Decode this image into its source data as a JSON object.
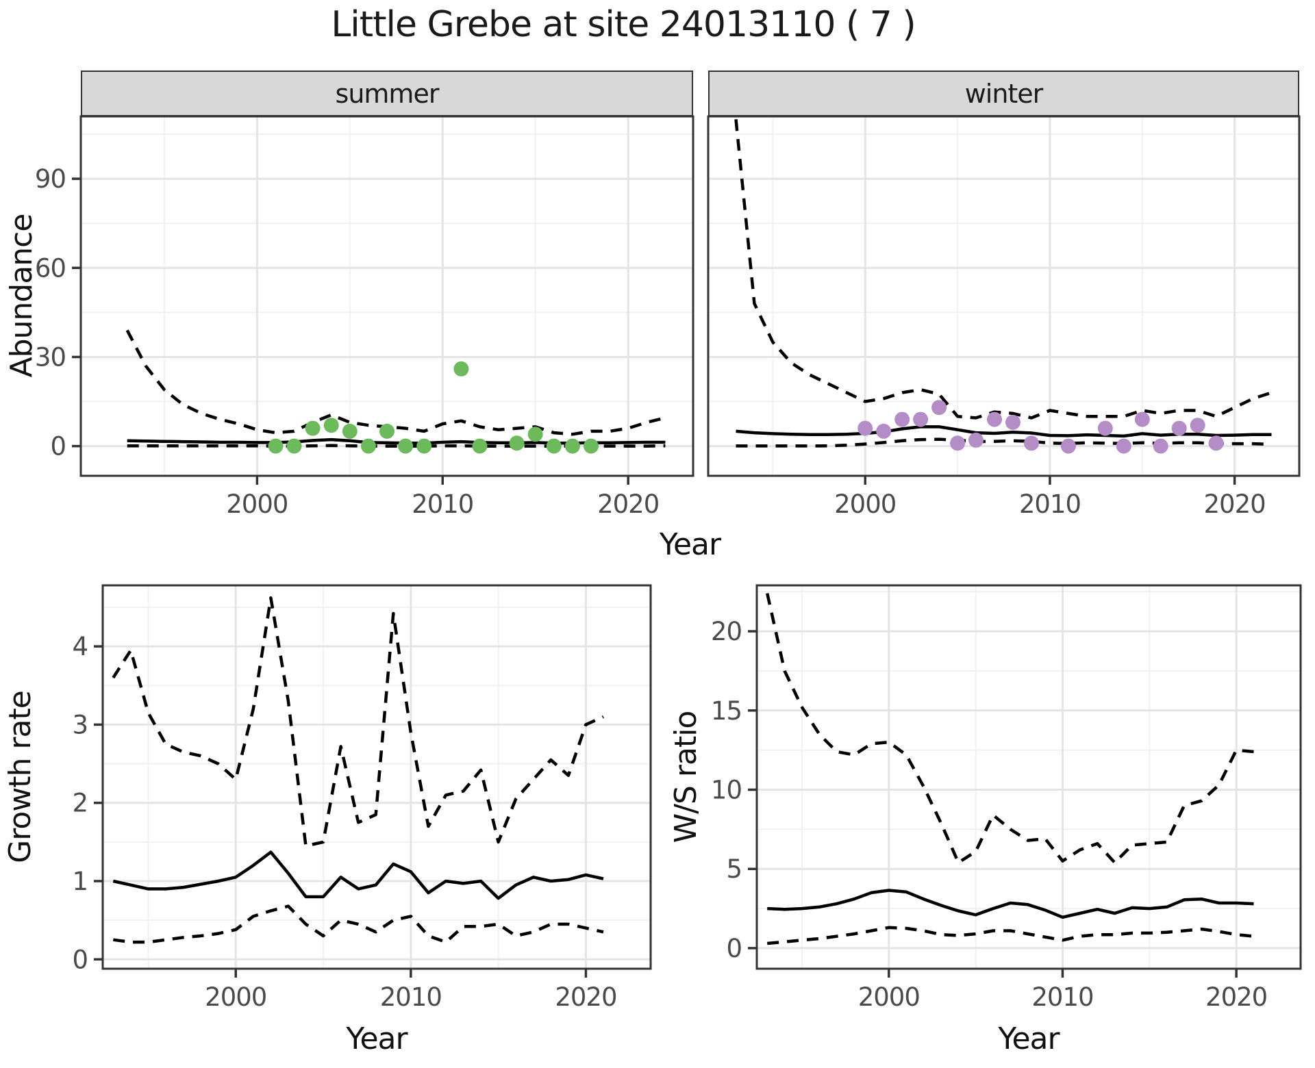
{
  "title": "Little Grebe at site 24013110 ( 7 )",
  "facets": {
    "summer": "summer",
    "winter": "winter"
  },
  "axes": {
    "abundance_label": "Abundance",
    "growth_label": "Growth rate",
    "ws_label": "W/S ratio",
    "x_label": "Year"
  },
  "colors": {
    "summer_point": "#6cba5c",
    "winter_point": "#b48cc6",
    "line": "#000000",
    "strip_bg": "#d8d8d8",
    "panel_border": "#333333",
    "grid_major": "#e4e4e4",
    "grid_minor": "#f1f1f1",
    "tick_text": "#4a4a4a",
    "title_text": "#1a1a1a"
  },
  "chart_data": [
    {
      "id": "abundance_summer",
      "type": "line",
      "facet_label": "summer",
      "xlabel": "Year",
      "ylabel": "Abundance",
      "xlim": [
        1990.5,
        2023.5
      ],
      "ylim": [
        -10,
        111
      ],
      "xticks": [
        2000,
        2010,
        2020
      ],
      "yticks": [
        0,
        30,
        60,
        90
      ],
      "x": [
        1993,
        1994,
        1995,
        1996,
        1997,
        1998,
        1999,
        2000,
        2001,
        2002,
        2003,
        2004,
        2005,
        2006,
        2007,
        2008,
        2009,
        2010,
        2011,
        2012,
        2013,
        2014,
        2015,
        2016,
        2017,
        2018,
        2019,
        2020,
        2021,
        2022
      ],
      "series": [
        {
          "name": "upper_ci",
          "linetype": "dashed",
          "values": [
            39,
            27,
            19,
            14,
            11,
            9,
            7.5,
            5.5,
            4.5,
            5,
            8,
            10.5,
            8,
            7,
            6.5,
            6,
            5,
            7.5,
            8.5,
            6.5,
            5.5,
            6,
            6.5,
            4.5,
            4,
            5,
            5,
            6,
            8,
            9.5
          ]
        },
        {
          "name": "lower_ci",
          "linetype": "dashed",
          "values": [
            0.1,
            0.1,
            0.1,
            0.1,
            0.1,
            0.1,
            0.1,
            0.1,
            0,
            0,
            0.1,
            0.2,
            0.1,
            0,
            0,
            0,
            0,
            0.1,
            0.1,
            0,
            0,
            0,
            0,
            0,
            0,
            0,
            0,
            0,
            0,
            0.1
          ]
        },
        {
          "name": "mean",
          "linetype": "solid",
          "values": [
            1.8,
            1.7,
            1.6,
            1.5,
            1.4,
            1.3,
            1.3,
            1.2,
            1.2,
            1.4,
            1.9,
            2.2,
            1.8,
            1.2,
            1.1,
            1.0,
            1.0,
            1.3,
            1.5,
            1.2,
            1.1,
            1.1,
            1.2,
            1.0,
            1.0,
            1.1,
            1.1,
            1.2,
            1.3,
            1.3
          ]
        }
      ],
      "points": {
        "name": "observed-count",
        "color": "#6cba5c",
        "data": [
          [
            2001,
            0
          ],
          [
            2002,
            0
          ],
          [
            2003,
            6
          ],
          [
            2004,
            7
          ],
          [
            2005,
            5
          ],
          [
            2006,
            0
          ],
          [
            2007,
            5
          ],
          [
            2008,
            0
          ],
          [
            2009,
            0
          ],
          [
            2011,
            26
          ],
          [
            2012,
            0
          ],
          [
            2014,
            1
          ],
          [
            2015,
            4
          ],
          [
            2016,
            0
          ],
          [
            2017,
            0
          ],
          [
            2018,
            0
          ]
        ]
      }
    },
    {
      "id": "abundance_winter",
      "type": "line",
      "facet_label": "winter",
      "xlabel": "Year",
      "ylabel": "Abundance",
      "xlim": [
        1991.5,
        2023.5
      ],
      "ylim": [
        -10,
        111
      ],
      "xticks": [
        2000,
        2010,
        2020
      ],
      "yticks": [
        0,
        30,
        60,
        90
      ],
      "x": [
        1993,
        1994,
        1995,
        1996,
        1997,
        1998,
        1999,
        2000,
        2001,
        2002,
        2003,
        2004,
        2005,
        2006,
        2007,
        2008,
        2009,
        2010,
        2011,
        2012,
        2013,
        2014,
        2015,
        2016,
        2017,
        2018,
        2019,
        2020,
        2021,
        2022
      ],
      "series": [
        {
          "name": "upper_ci",
          "linetype": "dashed",
          "values": [
            110,
            48,
            35,
            28,
            24,
            21,
            18,
            15,
            16,
            18,
            19,
            17.5,
            10,
            9.5,
            11.5,
            11,
            9.5,
            12,
            11,
            10,
            10,
            10,
            12,
            11,
            12,
            12,
            10,
            13,
            16,
            18
          ]
        },
        {
          "name": "lower_ci",
          "linetype": "dashed",
          "values": [
            0.05,
            0.05,
            0.05,
            0.05,
            0.05,
            0.1,
            0.3,
            0.7,
            1.2,
            1.8,
            2.2,
            2.3,
            2.0,
            1.5,
            1.6,
            1.8,
            1.6,
            1.0,
            0.9,
            1.1,
            1.0,
            0.9,
            1.1,
            0.9,
            1.1,
            1.1,
            0.9,
            0.8,
            0.8,
            0.6
          ]
        },
        {
          "name": "mean",
          "linetype": "solid",
          "values": [
            5.0,
            4.5,
            4.2,
            4.0,
            3.9,
            3.9,
            4.0,
            4.3,
            4.8,
            5.8,
            6.5,
            6.5,
            5.5,
            4.5,
            4.3,
            4.7,
            4.4,
            3.6,
            3.5,
            3.8,
            3.6,
            3.4,
            4.2,
            3.7,
            4.0,
            4.0,
            3.6,
            3.7,
            3.9,
            3.9
          ]
        }
      ],
      "points": {
        "name": "observed-count",
        "color": "#b48cc6",
        "data": [
          [
            2000,
            6
          ],
          [
            2001,
            5
          ],
          [
            2002,
            9
          ],
          [
            2003,
            9
          ],
          [
            2004,
            13
          ],
          [
            2005,
            1
          ],
          [
            2006,
            2
          ],
          [
            2007,
            9
          ],
          [
            2008,
            8
          ],
          [
            2009,
            1
          ],
          [
            2011,
            0
          ],
          [
            2013,
            6
          ],
          [
            2014,
            0
          ],
          [
            2015,
            9
          ],
          [
            2016,
            0
          ],
          [
            2017,
            6
          ],
          [
            2018,
            7
          ],
          [
            2019,
            1
          ]
        ]
      }
    },
    {
      "id": "growth_rate",
      "type": "line",
      "facet_label": "",
      "xlabel": "Year",
      "ylabel": "Growth rate",
      "xlim": [
        1992.4,
        2023.7
      ],
      "ylim": [
        -0.12,
        4.78
      ],
      "xticks": [
        2000,
        2010,
        2020
      ],
      "yticks": [
        0,
        1,
        2,
        3,
        4
      ],
      "x": [
        1993,
        1994,
        1995,
        1996,
        1997,
        1998,
        1999,
        2000,
        2001,
        2002,
        2003,
        2004,
        2005,
        2006,
        2007,
        2008,
        2009,
        2010,
        2011,
        2012,
        2013,
        2014,
        2015,
        2016,
        2017,
        2018,
        2019,
        2020,
        2021
      ],
      "series": [
        {
          "name": "upper_ci",
          "linetype": "dashed",
          "values": [
            3.6,
            3.95,
            3.15,
            2.75,
            2.65,
            2.6,
            2.5,
            2.3,
            3.2,
            4.62,
            3.3,
            1.45,
            1.5,
            2.72,
            1.75,
            1.85,
            4.42,
            2.9,
            1.7,
            2.1,
            2.15,
            2.42,
            1.5,
            2.05,
            2.3,
            2.55,
            2.35,
            3.0,
            3.1
          ]
        },
        {
          "name": "lower_ci",
          "linetype": "dashed",
          "values": [
            0.25,
            0.22,
            0.22,
            0.25,
            0.28,
            0.3,
            0.33,
            0.38,
            0.55,
            0.62,
            0.68,
            0.45,
            0.3,
            0.5,
            0.45,
            0.35,
            0.5,
            0.55,
            0.3,
            0.22,
            0.42,
            0.42,
            0.45,
            0.3,
            0.35,
            0.45,
            0.45,
            0.4,
            0.35
          ]
        },
        {
          "name": "mean",
          "linetype": "solid",
          "values": [
            1.0,
            0.95,
            0.9,
            0.9,
            0.92,
            0.96,
            1.0,
            1.05,
            1.2,
            1.37,
            1.1,
            0.8,
            0.8,
            1.05,
            0.9,
            0.95,
            1.22,
            1.12,
            0.85,
            1.0,
            0.97,
            1.0,
            0.78,
            0.95,
            1.05,
            1.0,
            1.02,
            1.08,
            1.03
          ]
        }
      ]
    },
    {
      "id": "ws_ratio",
      "type": "line",
      "facet_label": "",
      "xlabel": "Year",
      "ylabel": "W/S ratio",
      "xlim": [
        1992.4,
        2023.7
      ],
      "ylim": [
        -1.3,
        22.9
      ],
      "xticks": [
        2000,
        2010,
        2020
      ],
      "yticks": [
        0,
        5,
        10,
        15,
        20
      ],
      "x": [
        1993,
        1994,
        1995,
        1996,
        1997,
        1998,
        1999,
        2000,
        2001,
        2002,
        2003,
        2004,
        2005,
        2006,
        2007,
        2008,
        2009,
        2010,
        2011,
        2012,
        2013,
        2014,
        2015,
        2016,
        2017,
        2018,
        2019,
        2020,
        2021
      ],
      "series": [
        {
          "name": "upper_ci",
          "linetype": "dashed",
          "values": [
            22.4,
            17.5,
            15.2,
            13.5,
            12.4,
            12.2,
            12.9,
            13.0,
            12.2,
            10.2,
            7.9,
            5.4,
            6.1,
            8.4,
            7.5,
            6.8,
            6.9,
            5.5,
            6.2,
            6.6,
            5.4,
            6.5,
            6.6,
            6.7,
            9.0,
            9.3,
            10.3,
            12.5,
            12.4
          ]
        },
        {
          "name": "lower_ci",
          "linetype": "dashed",
          "values": [
            0.3,
            0.4,
            0.5,
            0.6,
            0.75,
            0.9,
            1.1,
            1.3,
            1.25,
            1.1,
            0.85,
            0.8,
            0.9,
            1.1,
            1.1,
            0.9,
            0.7,
            0.5,
            0.75,
            0.85,
            0.85,
            0.95,
            0.95,
            1.0,
            1.1,
            1.2,
            1.05,
            0.85,
            0.75
          ]
        },
        {
          "name": "mean",
          "linetype": "solid",
          "values": [
            2.5,
            2.45,
            2.5,
            2.6,
            2.8,
            3.1,
            3.5,
            3.65,
            3.55,
            3.1,
            2.7,
            2.35,
            2.1,
            2.5,
            2.85,
            2.75,
            2.4,
            1.95,
            2.2,
            2.45,
            2.2,
            2.55,
            2.5,
            2.6,
            3.05,
            3.1,
            2.85,
            2.85,
            2.8
          ]
        }
      ]
    }
  ]
}
